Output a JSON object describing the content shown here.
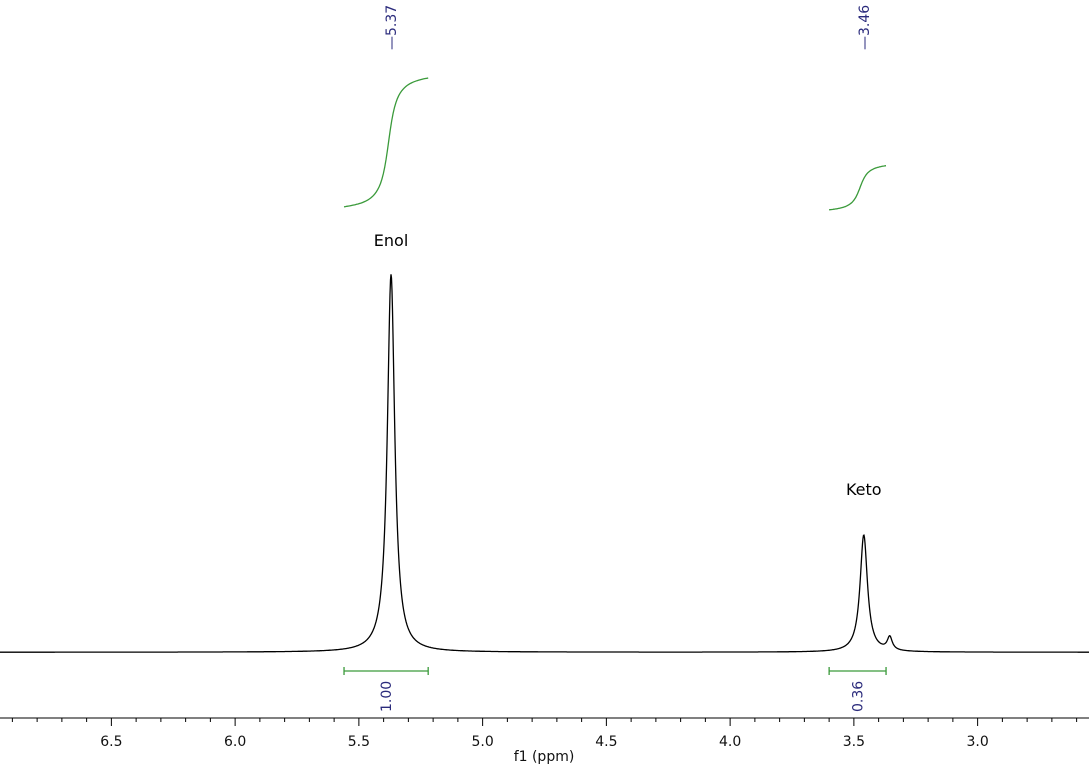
{
  "chart_data": {
    "type": "line",
    "xlabel": "f1 (ppm)",
    "x_reversed": true,
    "xlim": [
      6.95,
      2.55
    ],
    "ylim": [
      0,
      1
    ],
    "x_ticks": [
      6.5,
      6.0,
      5.5,
      5.0,
      4.5,
      4.0,
      3.5,
      3.0
    ],
    "x_tick_labels": [
      "6.5",
      "6.0",
      "5.5",
      "5.0",
      "4.5",
      "4.0",
      "3.5",
      "3.0"
    ],
    "grid": false,
    "series": [
      {
        "color": "#000000",
        "baseline": 0.01,
        "peaks": [
          {
            "center": 5.37,
            "height": 1.0,
            "width": 0.018
          },
          {
            "center": 3.46,
            "height": 0.31,
            "width": 0.018
          },
          {
            "center": 3.355,
            "height": 0.035,
            "width": 0.012
          }
        ]
      }
    ],
    "peak_picks": [
      {
        "ppm": 5.37,
        "label": "5.37"
      },
      {
        "ppm": 3.46,
        "label": "3.46"
      }
    ],
    "integrals": [
      {
        "from": 5.56,
        "to": 5.22,
        "value": "1.00",
        "relative_rise": 1.0
      },
      {
        "from": 3.6,
        "to": 3.37,
        "value": "0.36",
        "relative_rise": 0.36
      }
    ],
    "annotations": [
      {
        "text": "Enol",
        "ppm": 5.37
      },
      {
        "text": "Keto",
        "ppm": 3.46
      }
    ],
    "colors": {
      "integral": "#3a9a3a",
      "peak_label": "#2b2b7c",
      "spectrum": "#000000"
    }
  }
}
